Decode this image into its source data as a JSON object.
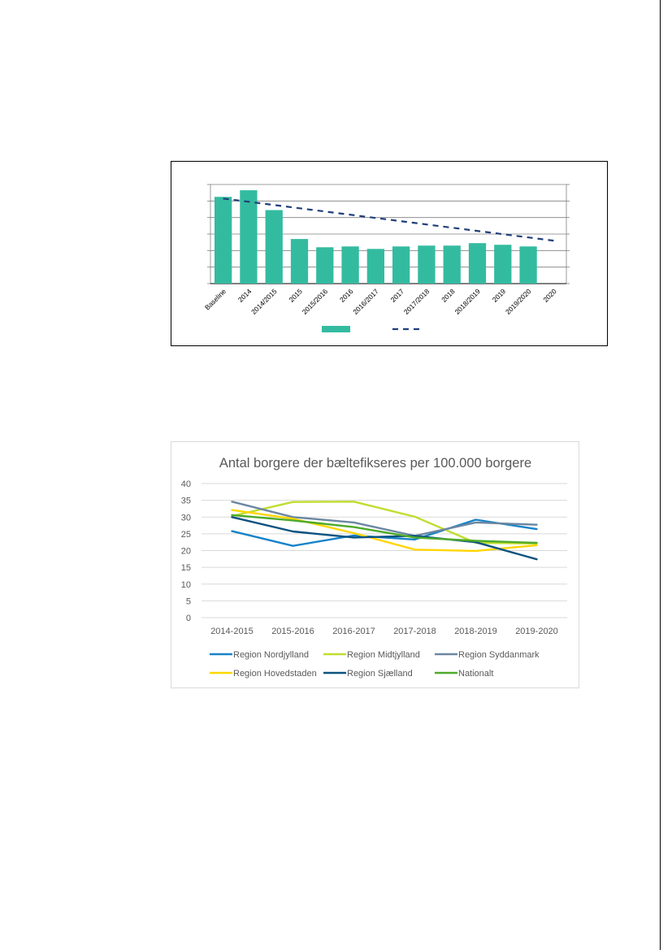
{
  "chart_data": [
    {
      "type": "bar",
      "title": "",
      "categories": [
        "Baseline",
        "2014",
        "2014/2015",
        "2015",
        "2015/2016",
        "2016",
        "2016/2017",
        "2017",
        "2017/2018",
        "2018",
        "2018/2019",
        "2019",
        "2019/2020",
        "2020"
      ],
      "series": [
        {
          "values": [
            105,
            113,
            89,
            54,
            44,
            45,
            42,
            45,
            46,
            46,
            49,
            47,
            45,
            null
          ],
          "color": "#33bba0"
        },
        {
          "values": [
            103,
            null,
            null,
            null,
            null,
            null,
            null,
            null,
            null,
            null,
            null,
            null,
            null,
            52
          ],
          "style": "dashed",
          "color": "#1f3f7a"
        }
      ],
      "ylim": [
        0,
        120
      ],
      "grid": true,
      "legend": "bottom"
    },
    {
      "type": "line",
      "title": "Antal borgere der bæltefikseres per 100.000 borgere",
      "categories": [
        "2014-2015",
        "2015-2016",
        "2016-2017",
        "2017-2018",
        "2018-2019",
        "2019-2020"
      ],
      "yticks": [
        "0",
        "5",
        "10",
        "15",
        "20",
        "25",
        "30",
        "35",
        "40"
      ],
      "ylim": [
        0,
        40
      ],
      "grid": true,
      "legend": "bottom",
      "series": [
        {
          "name": "Region Nordjylland",
          "values": [
            25.8,
            21.4,
            24.5,
            23.3,
            29.2,
            26.4
          ],
          "color": "#1683c8"
        },
        {
          "name": "Region Midtjylland",
          "values": [
            30.3,
            34.5,
            34.6,
            30.1,
            22.3,
            22.1
          ],
          "color": "#bfde2d"
        },
        {
          "name": "Region Syddanmark",
          "values": [
            34.6,
            30.0,
            28.4,
            24.4,
            28.4,
            27.7
          ],
          "color": "#6b87a1"
        },
        {
          "name": "Region Hovedstaden",
          "values": [
            32.1,
            29.5,
            25.2,
            20.3,
            19.9,
            21.6
          ],
          "color": "#ffd600"
        },
        {
          "name": "Region Sjælland",
          "values": [
            30.0,
            25.7,
            23.9,
            24.4,
            22.5,
            17.4
          ],
          "color": "#0b5280"
        },
        {
          "name": "Nationalt",
          "values": [
            30.6,
            29.0,
            27.0,
            23.9,
            22.9,
            22.3
          ],
          "color": "#4eaa2a"
        }
      ]
    }
  ]
}
